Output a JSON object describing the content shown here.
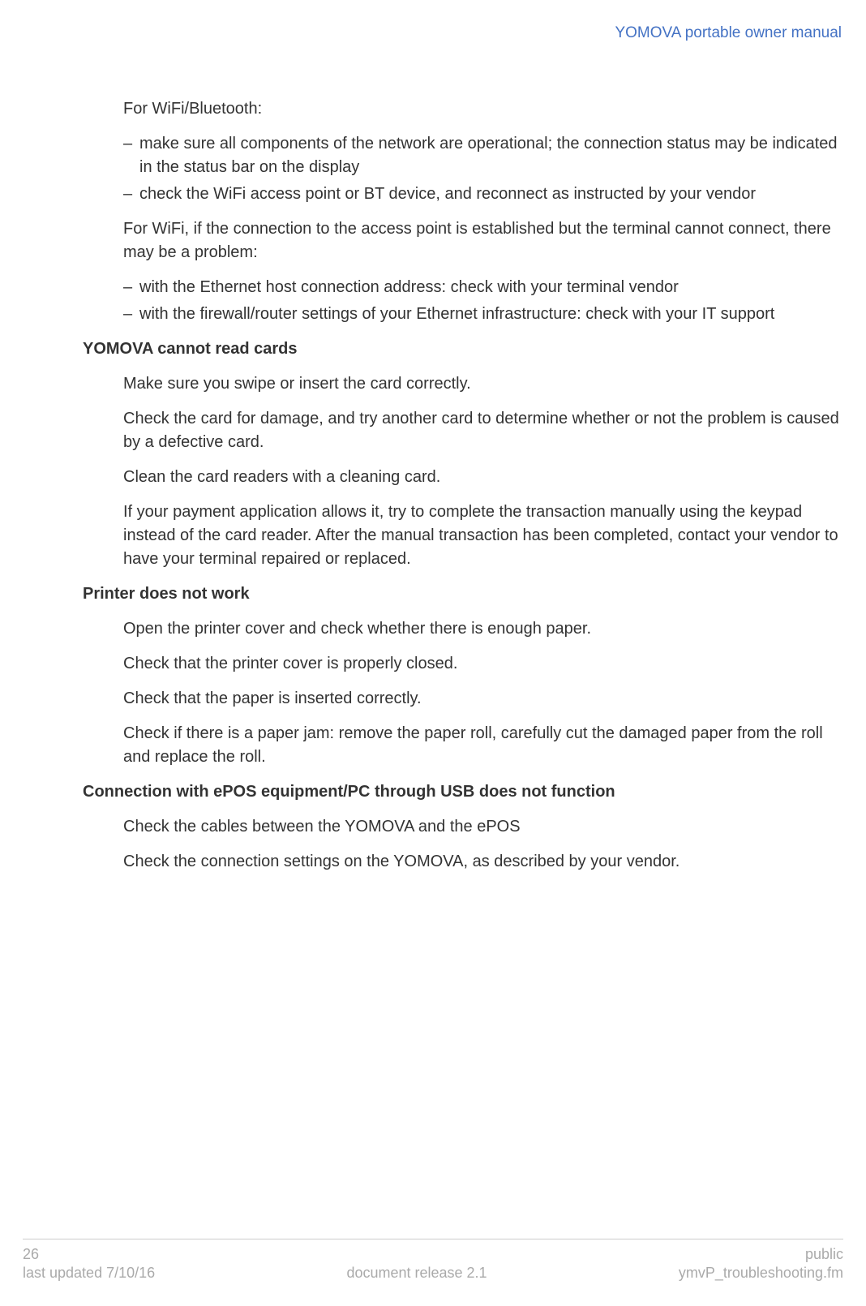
{
  "header": {
    "title": "YOMOVA portable owner manual"
  },
  "body": {
    "intro1": "For WiFi/Bluetooth:",
    "list1": [
      "make sure all components of the network are operational; the connection status may be indicated in the status bar on the display",
      "check the WiFi access point or BT device, and reconnect as instructed by your vendor"
    ],
    "intro2": "For WiFi, if the connection to the access point is established but the terminal cannot connect, there may be a problem:",
    "list2": [
      "with the Ethernet host connection address: check with your terminal vendor",
      "with the firewall/router settings of your Ethernet infrastructure: check with your IT support"
    ],
    "section1": {
      "heading": "YOMOVA cannot read cards",
      "paras": [
        "Make sure you swipe or insert the card correctly.",
        "Check the card for damage, and try another card to determine whether or not the problem is caused by a defective card.",
        "Clean the card readers with a cleaning card.",
        "If your payment application allows it, try to complete the transaction manually using the keypad instead of the card reader. After the manual transaction has been completed, contact your vendor to have your terminal repaired or replaced."
      ]
    },
    "section2": {
      "heading": "Printer does not work",
      "paras": [
        "Open the printer cover and check whether there is enough paper.",
        "Check that the printer cover is properly closed.",
        "Check that the paper is inserted correctly.",
        "Check if there is a paper jam: remove the paper roll, carefully cut the damaged paper from the roll and replace the roll."
      ]
    },
    "section3": {
      "heading": "Connection with ePOS equipment/PC through USB does not function",
      "paras": [
        "Check the cables between the YOMOVA and the ePOS",
        "Check the connection settings on the YOMOVA, as described by your vendor."
      ]
    }
  },
  "footer": {
    "page": "26",
    "classification": "public",
    "updated": "last updated 7/10/16",
    "release": "document release 2.1",
    "filename": "ymvP_troubleshooting.fm"
  },
  "style": {
    "header_color": "#4472c4",
    "text_color": "#333333",
    "footer_color": "#aaaaaa",
    "background_color": "#ffffff",
    "divider_color": "#cccccc",
    "body_fontsize": 20,
    "header_fontsize": 19,
    "footer_fontsize": 18
  }
}
